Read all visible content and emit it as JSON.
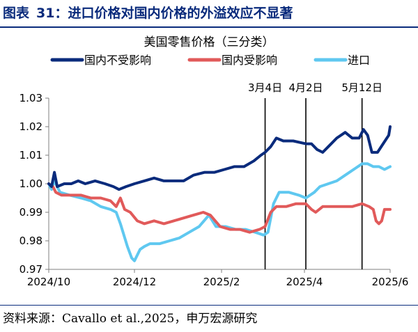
{
  "figure": {
    "label": "图表",
    "number": "31：",
    "heading": "进口价格对国内价格的外溢效应不显著"
  },
  "source": {
    "prefix": "资料来源：",
    "value": "Cavallo et al.,2025，",
    "org": "申万宏源研究"
  },
  "chart_data": {
    "type": "line",
    "title": "美国零售价格（三分类）",
    "xlabel": "",
    "ylabel": "",
    "ylim": [
      0.97,
      1.03
    ],
    "yticks": [
      0.97,
      0.98,
      0.99,
      1.0,
      1.01,
      1.02,
      1.03
    ],
    "ytick_labels": [
      "0.97",
      "0.98",
      "0.99",
      "1.00",
      "1.01",
      "1.02",
      "1.03"
    ],
    "xlim": [
      "2024-10-01",
      "2025-06-01"
    ],
    "xticks": [
      "2024-10-01",
      "2024-12-01",
      "2025-02-01",
      "2025-04-01",
      "2025-06-01"
    ],
    "xtick_labels": [
      "2024/10",
      "2024/12",
      "2025/2",
      "2025/4",
      "2025/6"
    ],
    "grid": false,
    "legend_position": "top",
    "vlines": [
      {
        "date": "2025-03-04",
        "label": "3月4日"
      },
      {
        "date": "2025-04-02",
        "label": "4月2日"
      },
      {
        "date": "2025-05-12",
        "label": "5月12日"
      }
    ],
    "series": [
      {
        "name": "国内不受影响",
        "color": "#0a2b7c",
        "points": [
          [
            "2024-10-01",
            1.0
          ],
          [
            "2024-10-03",
            0.999
          ],
          [
            "2024-10-05",
            1.004
          ],
          [
            "2024-10-07",
            0.999
          ],
          [
            "2024-10-12",
            1.0
          ],
          [
            "2024-10-17",
            1.0
          ],
          [
            "2024-10-22",
            1.001
          ],
          [
            "2024-10-27",
            1.0
          ],
          [
            "2024-11-03",
            1.001
          ],
          [
            "2024-11-10",
            1.0
          ],
          [
            "2024-11-16",
            0.999
          ],
          [
            "2024-11-20",
            0.998
          ],
          [
            "2024-11-25",
            0.999
          ],
          [
            "2024-12-01",
            1.0
          ],
          [
            "2024-12-08",
            1.001
          ],
          [
            "2024-12-15",
            1.002
          ],
          [
            "2024-12-22",
            1.001
          ],
          [
            "2024-12-29",
            1.001
          ],
          [
            "2025-01-05",
            1.001
          ],
          [
            "2025-01-12",
            1.003
          ],
          [
            "2025-01-20",
            1.004
          ],
          [
            "2025-01-27",
            1.004
          ],
          [
            "2025-02-03",
            1.005
          ],
          [
            "2025-02-10",
            1.006
          ],
          [
            "2025-02-17",
            1.006
          ],
          [
            "2025-02-24",
            1.008
          ],
          [
            "2025-03-01",
            1.01
          ],
          [
            "2025-03-04",
            1.011
          ],
          [
            "2025-03-08",
            1.013
          ],
          [
            "2025-03-12",
            1.016
          ],
          [
            "2025-03-17",
            1.015
          ],
          [
            "2025-03-24",
            1.015
          ],
          [
            "2025-04-02",
            1.014
          ],
          [
            "2025-04-06",
            1.014
          ],
          [
            "2025-04-10",
            1.012
          ],
          [
            "2025-04-14",
            1.011
          ],
          [
            "2025-04-18",
            1.013
          ],
          [
            "2025-04-24",
            1.016
          ],
          [
            "2025-04-30",
            1.018
          ],
          [
            "2025-05-05",
            1.016
          ],
          [
            "2025-05-10",
            1.016
          ],
          [
            "2025-05-13",
            1.019
          ],
          [
            "2025-05-16",
            1.017
          ],
          [
            "2025-05-19",
            1.011
          ],
          [
            "2025-05-23",
            1.011
          ],
          [
            "2025-05-27",
            1.014
          ],
          [
            "2025-05-31",
            1.017
          ],
          [
            "2025-06-01",
            1.02
          ]
        ]
      },
      {
        "name": "国内受影响",
        "color": "#e15a5a",
        "points": [
          [
            "2024-10-01",
            1.0
          ],
          [
            "2024-10-04",
            0.999
          ],
          [
            "2024-10-06",
            0.997
          ],
          [
            "2024-10-10",
            0.996
          ],
          [
            "2024-10-17",
            0.996
          ],
          [
            "2024-10-24",
            0.996
          ],
          [
            "2024-10-31",
            0.995
          ],
          [
            "2024-11-07",
            0.995
          ],
          [
            "2024-11-14",
            0.994
          ],
          [
            "2024-11-18",
            0.992
          ],
          [
            "2024-11-21",
            0.995
          ],
          [
            "2024-11-24",
            0.991
          ],
          [
            "2024-11-28",
            0.99
          ],
          [
            "2024-12-03",
            0.987
          ],
          [
            "2024-12-08",
            0.986
          ],
          [
            "2024-12-15",
            0.987
          ],
          [
            "2024-12-22",
            0.986
          ],
          [
            "2024-12-29",
            0.987
          ],
          [
            "2025-01-05",
            0.988
          ],
          [
            "2025-01-12",
            0.989
          ],
          [
            "2025-01-19",
            0.99
          ],
          [
            "2025-01-24",
            0.989
          ],
          [
            "2025-01-31",
            0.985
          ],
          [
            "2025-02-07",
            0.984
          ],
          [
            "2025-02-14",
            0.984
          ],
          [
            "2025-02-21",
            0.983
          ],
          [
            "2025-02-28",
            0.984
          ],
          [
            "2025-03-04",
            0.985
          ],
          [
            "2025-03-08",
            0.99
          ],
          [
            "2025-03-12",
            0.992
          ],
          [
            "2025-03-19",
            0.992
          ],
          [
            "2025-03-26",
            0.993
          ],
          [
            "2025-04-02",
            0.993
          ],
          [
            "2025-04-06",
            0.991
          ],
          [
            "2025-04-09",
            0.99
          ],
          [
            "2025-04-14",
            0.992
          ],
          [
            "2025-04-21",
            0.992
          ],
          [
            "2025-04-28",
            0.992
          ],
          [
            "2025-05-05",
            0.992
          ],
          [
            "2025-05-12",
            0.993
          ],
          [
            "2025-05-17",
            0.992
          ],
          [
            "2025-05-20",
            0.991
          ],
          [
            "2025-05-22",
            0.987
          ],
          [
            "2025-05-24",
            0.986
          ],
          [
            "2025-05-26",
            0.987
          ],
          [
            "2025-05-28",
            0.991
          ],
          [
            "2025-06-01",
            0.991
          ]
        ]
      },
      {
        "name": "进口",
        "color": "#5fc8f0",
        "points": [
          [
            "2024-10-01",
            1.0
          ],
          [
            "2024-10-03",
            0.998
          ],
          [
            "2024-10-05",
            1.001
          ],
          [
            "2024-10-09",
            0.997
          ],
          [
            "2024-10-16",
            0.996
          ],
          [
            "2024-10-24",
            0.995
          ],
          [
            "2024-10-31",
            0.994
          ],
          [
            "2024-11-07",
            0.992
          ],
          [
            "2024-11-14",
            0.991
          ],
          [
            "2024-11-18",
            0.99
          ],
          [
            "2024-11-21",
            0.986
          ],
          [
            "2024-11-26",
            0.978
          ],
          [
            "2024-11-29",
            0.974
          ],
          [
            "2024-12-01",
            0.973
          ],
          [
            "2024-12-05",
            0.977
          ],
          [
            "2024-12-08",
            0.978
          ],
          [
            "2024-12-12",
            0.979
          ],
          [
            "2024-12-19",
            0.979
          ],
          [
            "2024-12-26",
            0.98
          ],
          [
            "2025-01-02",
            0.981
          ],
          [
            "2025-01-09",
            0.983
          ],
          [
            "2025-01-16",
            0.985
          ],
          [
            "2025-01-23",
            0.989
          ],
          [
            "2025-01-28",
            0.985
          ],
          [
            "2025-02-04",
            0.985
          ],
          [
            "2025-02-11",
            0.984
          ],
          [
            "2025-02-18",
            0.984
          ],
          [
            "2025-02-25",
            0.983
          ],
          [
            "2025-03-03",
            0.982
          ],
          [
            "2025-03-06",
            0.983
          ],
          [
            "2025-03-10",
            0.993
          ],
          [
            "2025-03-14",
            0.997
          ],
          [
            "2025-03-21",
            0.997
          ],
          [
            "2025-03-28",
            0.996
          ],
          [
            "2025-04-02",
            0.995
          ],
          [
            "2025-04-08",
            0.997
          ],
          [
            "2025-04-12",
            0.999
          ],
          [
            "2025-04-18",
            1.0
          ],
          [
            "2025-04-24",
            1.001
          ],
          [
            "2025-04-30",
            1.003
          ],
          [
            "2025-05-06",
            1.005
          ],
          [
            "2025-05-12",
            1.007
          ],
          [
            "2025-05-16",
            1.007
          ],
          [
            "2025-05-20",
            1.006
          ],
          [
            "2025-05-24",
            1.006
          ],
          [
            "2025-05-28",
            1.005
          ],
          [
            "2025-06-01",
            1.006
          ]
        ]
      }
    ]
  }
}
